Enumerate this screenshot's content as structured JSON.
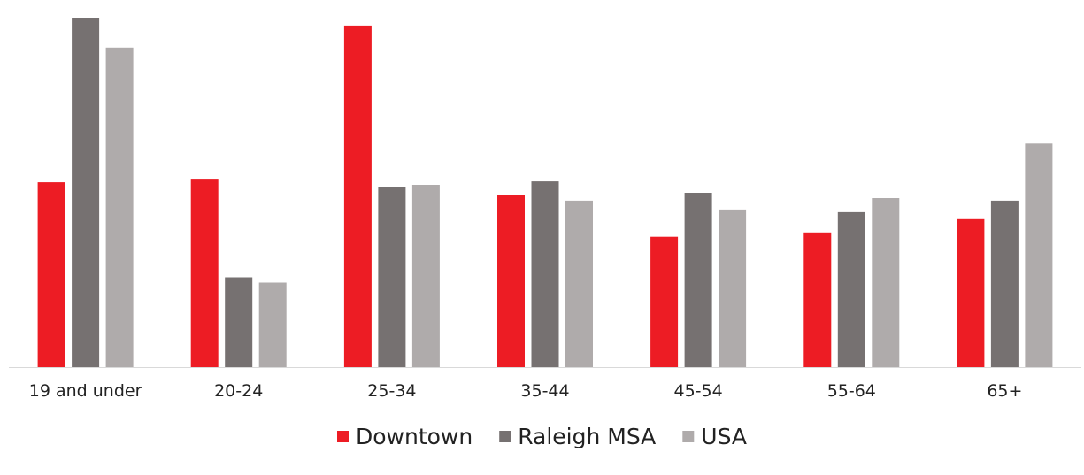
{
  "chart_data": {
    "type": "bar",
    "title": "",
    "xlabel": "",
    "ylabel": "",
    "categories": [
      "19 and under",
      "20-24",
      "25-34",
      "35-44",
      "45-54",
      "55-64",
      "65+"
    ],
    "series": [
      {
        "name": "Downtown",
        "color": "#ed1c24",
        "values": [
          21.0,
          21.4,
          38.8,
          19.6,
          14.8,
          15.3,
          16.8
        ]
      },
      {
        "name": "Raleigh MSA",
        "color": "#767171",
        "values": [
          39.7,
          10.2,
          20.5,
          21.1,
          19.8,
          17.6,
          18.9
        ]
      },
      {
        "name": "USA",
        "color": "#afabab",
        "values": [
          36.3,
          9.6,
          20.7,
          18.9,
          17.9,
          19.2,
          25.4
        ]
      }
    ],
    "ylim": [
      0,
      40
    ],
    "grid": false,
    "legend_position": "bottom-center"
  }
}
